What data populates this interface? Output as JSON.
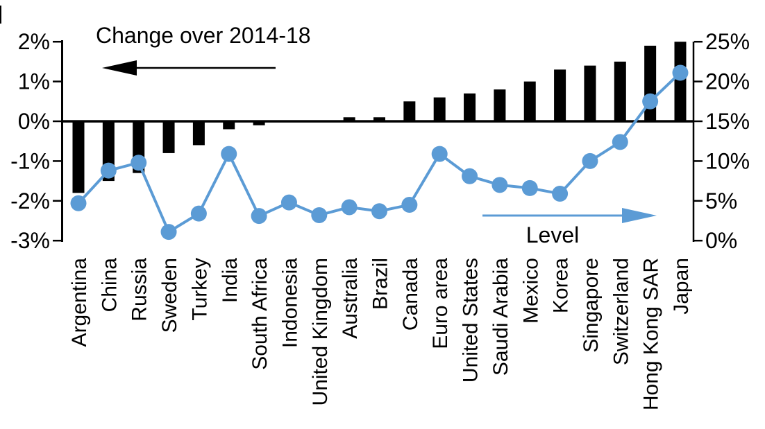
{
  "chart_data": {
    "type": "combo-bar-line",
    "title": "",
    "categories": [
      "Argentina",
      "China",
      "Russia",
      "Sweden",
      "Turkey",
      "India",
      "South Africa",
      "Indonesia",
      "United Kingdom",
      "Australia",
      "Brazil",
      "Canada",
      "Euro area",
      "United States",
      "Saudi Arabia",
      "Mexico",
      "Korea",
      "Singapore",
      "Switzerland",
      "Hong Kong SAR",
      "Japan"
    ],
    "series": [
      {
        "name": "Change over 2014-18",
        "type": "bar",
        "axis": "left",
        "color": "#000000",
        "values": [
          -1.8,
          -1.5,
          -1.3,
          -0.8,
          -0.6,
          -0.2,
          -0.1,
          0,
          0,
          0.1,
          0.1,
          0.5,
          0.6,
          0.7,
          0.8,
          1.0,
          1.3,
          1.4,
          1.5,
          1.9,
          2.0
        ]
      },
      {
        "name": "Level",
        "type": "line",
        "axis": "right",
        "color": "#5B9BD5",
        "values": [
          4.7,
          8.8,
          9.8,
          1.1,
          3.4,
          10.9,
          3.1,
          4.8,
          3.2,
          4.2,
          3.7,
          4.5,
          10.9,
          8.1,
          7.0,
          6.6,
          5.9,
          10.0,
          12.4,
          17.5,
          21.1
        ]
      }
    ],
    "left_axis": {
      "tick_labels": [
        "2%",
        "1%",
        "0%",
        "-1%",
        "-2%",
        "-3%"
      ],
      "tick_values": [
        2,
        1,
        0,
        -1,
        -2,
        -3
      ],
      "range": [
        -3,
        2
      ]
    },
    "right_axis": {
      "tick_labels": [
        "25%",
        "20%",
        "15%",
        "10%",
        "5%",
        "0%"
      ],
      "tick_values": [
        25,
        20,
        15,
        10,
        5,
        0
      ],
      "range": [
        0,
        25
      ]
    },
    "annotations": {
      "left": {
        "text": "Change over 2014-18",
        "arrow_direction": "left",
        "color": "#000000"
      },
      "right": {
        "text": "Level",
        "arrow_direction": "right",
        "color": "#5B9BD5"
      }
    },
    "grid": false,
    "legend_position": "none",
    "background": "#FFFFFF"
  },
  "colors": {
    "bar": "#000000",
    "line": "#5B9BD5",
    "text": "#000000",
    "background": "#FFFFFF"
  }
}
